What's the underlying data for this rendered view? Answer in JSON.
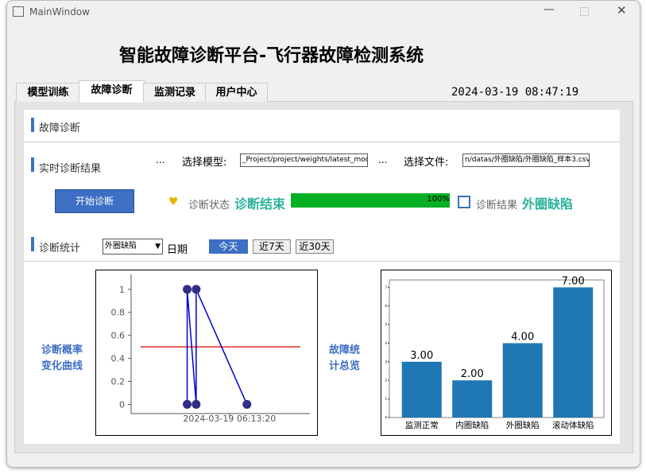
{
  "window": {
    "title": "MainWindow"
  },
  "header": {
    "title": "智能故障诊断平台-飞行器故障检测系统",
    "datetime": "2024-03-19 08:47:19"
  },
  "tabs": {
    "items": [
      "模型训练",
      "故障诊断",
      "监测记录",
      "用户中心"
    ],
    "active": 1
  },
  "panel": {
    "title": "故障诊断"
  },
  "realtime": {
    "title": "实时诊断结果",
    "model_button": "...",
    "model_label": "选择模型:",
    "model_path": "_Project/project/weights/latest_model",
    "file_button": "...",
    "file_label": "选择文件:",
    "file_path": "n/datas/外圈缺陷/外圈缺陷_样本3.csv",
    "start_button": "开始诊断",
    "status_label": "诊断状态",
    "status": "诊断结束",
    "progress": {
      "value": 100,
      "label": "100%"
    },
    "result_label": "诊断结果",
    "result": "外圈缺陷"
  },
  "stats": {
    "title": "诊断统计",
    "filter": "外圈缺陷",
    "date_label": "日期",
    "ranges": [
      "今天",
      "近7天",
      "近30天"
    ],
    "active_range": 0,
    "curve_title": [
      "诊断概率",
      "变化曲线"
    ],
    "overview_title": [
      "故障统",
      "计总览"
    ]
  },
  "chart_data": [
    {
      "type": "line",
      "x": [
        "2024-03-19 06:12:00",
        "2024-03-19 06:12:00",
        "2024-03-19 06:12:17",
        "2024-03-19 06:12:17",
        "2024-03-19 06:13:53"
      ],
      "series": [
        {
          "values": [
            0,
            1,
            0,
            1,
            0
          ],
          "color": "#0000cc"
        }
      ],
      "threshold": 0.5,
      "threshold_color": "#e00000",
      "xlim": [
        "2024-03-19 06:10:14",
        "2024-03-19 06:15:52"
      ],
      "xticks": [
        "2024-03-19 06:13:20"
      ],
      "ylim": [
        -0.08,
        1.13
      ],
      "yticks": [
        0,
        0.2,
        0.4,
        0.6,
        0.8,
        1
      ]
    },
    {
      "type": "bar",
      "categories": [
        "监测正常",
        "内圈缺陷",
        "外圈缺陷",
        "滚动体缺陷"
      ],
      "values": [
        3,
        2,
        4,
        7
      ],
      "value_labels": [
        "3.00",
        "2.00",
        "4.00",
        "7.00"
      ],
      "color": "#1f77b4",
      "ylim": [
        0,
        7.4
      ],
      "yticks": [
        0,
        1,
        2,
        3,
        4,
        5,
        6,
        7
      ]
    }
  ]
}
